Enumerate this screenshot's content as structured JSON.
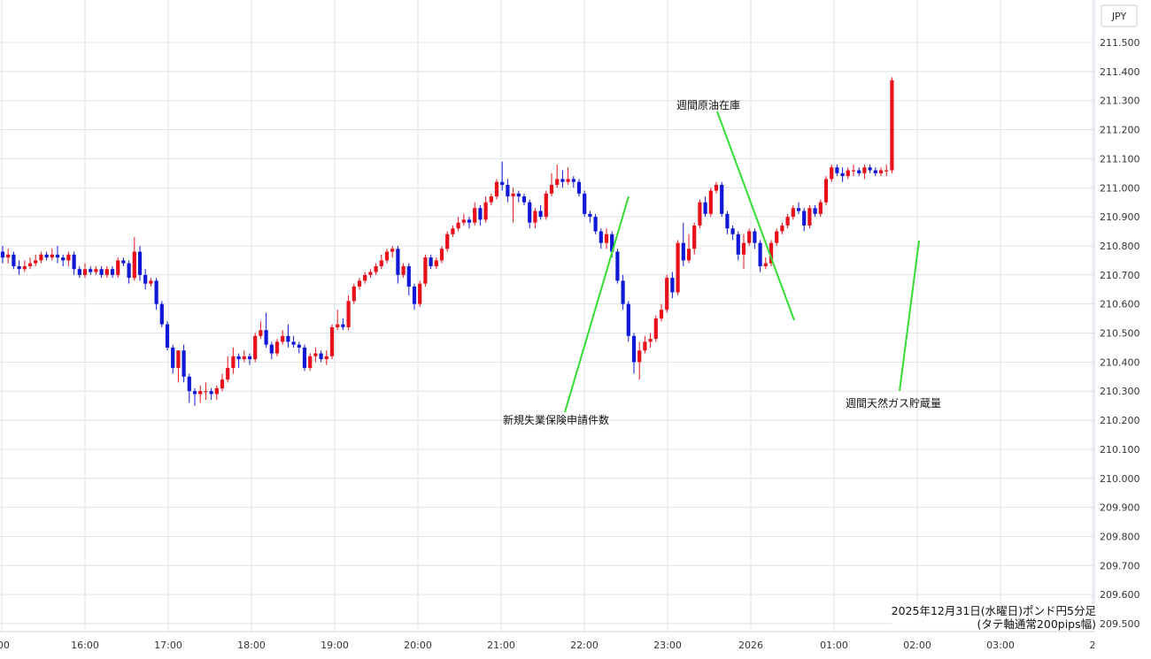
{
  "currency_label": "JPY",
  "caption": {
    "line1": "2025年12月31日(水曜日)ポンド円5分足",
    "line2": "(タテ軸通常200pips幅)"
  },
  "colors": {
    "up": "#e8101a",
    "down": "#1018d8",
    "annotation_line": "#33dd33",
    "grid": "#dde3ea"
  },
  "chart_data": {
    "type": "candlestick",
    "title": "",
    "ylim": [
      209.5,
      211.5
    ],
    "y_ticks": [
      "211.500",
      "211.400",
      "211.300",
      "211.200",
      "211.100",
      "211.000",
      "210.900",
      "210.800",
      "210.700",
      "210.600",
      "210.500",
      "210.400",
      "210.300",
      "210.200",
      "210.100",
      "210.000",
      "209.900",
      "209.800",
      "209.700",
      "209.600",
      "209.500"
    ],
    "x_ticks": [
      ":00",
      "16:00",
      "17:00",
      "18:00",
      "19:00",
      "20:00",
      "21:00",
      "22:00",
      "23:00",
      "2026",
      "01:00",
      "02:00",
      "03:00",
      "2"
    ],
    "annotations": [
      {
        "text": "新規失業保険申請件数"
      },
      {
        "text": "週間原油在庫"
      },
      {
        "text": "週間天然ガス貯蔵量"
      }
    ],
    "candles": [
      [
        210.78,
        210.76,
        210.8,
        210.74
      ],
      [
        210.76,
        210.77,
        210.79,
        210.74
      ],
      [
        210.77,
        210.73,
        210.78,
        210.72
      ],
      [
        210.73,
        210.72,
        210.75,
        210.7
      ],
      [
        210.72,
        210.73,
        210.75,
        210.71
      ],
      [
        210.73,
        210.74,
        210.76,
        210.72
      ],
      [
        210.74,
        210.75,
        210.77,
        210.73
      ],
      [
        210.75,
        210.77,
        210.78,
        210.74
      ],
      [
        210.77,
        210.76,
        210.78,
        210.75
      ],
      [
        210.76,
        210.77,
        210.79,
        210.75
      ],
      [
        210.77,
        210.76,
        210.8,
        210.74
      ],
      [
        210.76,
        210.75,
        210.77,
        210.73
      ],
      [
        210.75,
        210.77,
        210.78,
        210.73
      ],
      [
        210.77,
        210.72,
        210.78,
        210.7
      ],
      [
        210.72,
        210.7,
        210.73,
        210.69
      ],
      [
        210.7,
        210.72,
        210.74,
        210.69
      ],
      [
        210.72,
        210.71,
        210.73,
        210.7
      ],
      [
        210.71,
        210.72,
        210.73,
        210.7
      ],
      [
        210.72,
        210.7,
        210.73,
        210.69
      ],
      [
        210.7,
        210.72,
        210.73,
        210.69
      ],
      [
        210.72,
        210.7,
        210.73,
        210.69
      ],
      [
        210.7,
        210.75,
        210.76,
        210.69
      ],
      [
        210.75,
        210.74,
        210.76,
        210.73
      ],
      [
        210.74,
        210.69,
        210.75,
        210.67
      ],
      [
        210.69,
        210.78,
        210.83,
        210.68
      ],
      [
        210.78,
        210.7,
        210.8,
        210.68
      ],
      [
        210.7,
        210.67,
        210.72,
        210.65
      ],
      [
        210.67,
        210.68,
        210.69,
        210.66
      ],
      [
        210.68,
        210.6,
        210.69,
        210.58
      ],
      [
        210.6,
        210.53,
        210.61,
        210.52
      ],
      [
        210.53,
        210.45,
        210.54,
        210.44
      ],
      [
        210.45,
        210.38,
        210.46,
        210.36
      ],
      [
        210.38,
        210.44,
        210.44,
        210.33
      ],
      [
        210.44,
        210.35,
        210.46,
        210.33
      ],
      [
        210.35,
        210.3,
        210.36,
        210.26
      ],
      [
        210.3,
        210.29,
        210.31,
        210.25
      ],
      [
        210.29,
        210.3,
        210.32,
        210.26
      ],
      [
        210.3,
        210.3,
        210.33,
        210.27
      ],
      [
        210.3,
        210.29,
        210.31,
        210.27
      ],
      [
        210.29,
        210.31,
        210.32,
        210.27
      ],
      [
        210.31,
        210.34,
        210.36,
        210.3
      ],
      [
        210.34,
        210.38,
        210.42,
        210.33
      ],
      [
        210.38,
        210.42,
        210.45,
        210.36
      ],
      [
        210.42,
        210.41,
        210.43,
        210.38
      ],
      [
        210.41,
        210.42,
        210.44,
        210.4
      ],
      [
        210.42,
        210.41,
        210.43,
        210.39
      ],
      [
        210.41,
        210.49,
        210.5,
        210.4
      ],
      [
        210.49,
        210.51,
        210.54,
        210.48
      ],
      [
        210.51,
        210.46,
        210.57,
        210.45
      ],
      [
        210.46,
        210.43,
        210.47,
        210.41
      ],
      [
        210.43,
        210.47,
        210.48,
        210.42
      ],
      [
        210.47,
        210.49,
        210.51,
        210.46
      ],
      [
        210.49,
        210.47,
        210.53,
        210.45
      ],
      [
        210.47,
        210.46,
        210.49,
        210.45
      ],
      [
        210.46,
        210.45,
        210.47,
        210.43
      ],
      [
        210.45,
        210.38,
        210.46,
        210.37
      ],
      [
        210.38,
        210.42,
        210.43,
        210.37
      ],
      [
        210.42,
        210.43,
        210.45,
        210.4
      ],
      [
        210.43,
        210.41,
        210.44,
        210.4
      ],
      [
        210.41,
        210.42,
        210.44,
        210.39
      ],
      [
        210.42,
        210.52,
        210.53,
        210.41
      ],
      [
        210.52,
        210.53,
        210.58,
        210.51
      ],
      [
        210.53,
        210.52,
        210.55,
        210.51
      ],
      [
        210.52,
        210.61,
        210.63,
        210.51
      ],
      [
        210.61,
        210.66,
        210.67,
        210.6
      ],
      [
        210.66,
        210.68,
        210.69,
        210.65
      ],
      [
        210.68,
        210.7,
        210.71,
        210.67
      ],
      [
        210.7,
        210.71,
        210.72,
        210.69
      ],
      [
        210.71,
        210.73,
        210.74,
        210.7
      ],
      [
        210.73,
        210.75,
        210.77,
        210.72
      ],
      [
        210.75,
        210.78,
        210.79,
        210.74
      ],
      [
        210.78,
        210.79,
        210.8,
        210.76
      ],
      [
        210.79,
        210.7,
        210.8,
        210.67
      ],
      [
        210.7,
        210.73,
        210.74,
        210.69
      ],
      [
        210.73,
        210.66,
        210.74,
        210.63
      ],
      [
        210.66,
        210.6,
        210.67,
        210.58
      ],
      [
        210.6,
        210.67,
        210.68,
        210.59
      ],
      [
        210.67,
        210.76,
        210.77,
        210.66
      ],
      [
        210.76,
        210.73,
        210.77,
        210.72
      ],
      [
        210.73,
        210.75,
        210.76,
        210.72
      ],
      [
        210.75,
        210.79,
        210.8,
        210.74
      ],
      [
        210.79,
        210.84,
        210.85,
        210.78
      ],
      [
        210.84,
        210.86,
        210.87,
        210.83
      ],
      [
        210.86,
        210.88,
        210.9,
        210.85
      ],
      [
        210.88,
        210.89,
        210.91,
        210.87
      ],
      [
        210.89,
        210.88,
        210.9,
        210.86
      ],
      [
        210.88,
        210.93,
        210.95,
        210.87
      ],
      [
        210.93,
        210.89,
        210.94,
        210.87
      ],
      [
        210.89,
        210.95,
        210.97,
        210.88
      ],
      [
        210.95,
        210.97,
        210.98,
        210.94
      ],
      [
        210.97,
        211.02,
        211.03,
        210.96
      ],
      [
        211.02,
        211.01,
        211.09,
        210.99
      ],
      [
        211.01,
        210.97,
        211.03,
        210.95
      ],
      [
        210.97,
        210.98,
        211.0,
        210.88
      ],
      [
        210.98,
        210.97,
        210.99,
        210.95
      ],
      [
        210.97,
        210.95,
        210.98,
        210.94
      ],
      [
        210.95,
        210.88,
        210.96,
        210.86
      ],
      [
        210.88,
        210.92,
        210.93,
        210.86
      ],
      [
        210.92,
        210.9,
        210.94,
        210.89
      ],
      [
        210.9,
        210.98,
        210.99,
        210.89
      ],
      [
        210.98,
        211.01,
        211.05,
        210.97
      ],
      [
        211.01,
        211.03,
        211.08,
        211.0
      ],
      [
        211.03,
        211.02,
        211.06,
        211.0
      ],
      [
        211.02,
        211.03,
        211.07,
        211.01
      ],
      [
        211.03,
        211.02,
        211.04,
        211.0
      ],
      [
        211.02,
        210.98,
        211.03,
        210.97
      ],
      [
        210.98,
        210.91,
        210.99,
        210.9
      ],
      [
        210.91,
        210.9,
        210.92,
        210.88
      ],
      [
        210.9,
        210.85,
        210.91,
        210.84
      ],
      [
        210.85,
        210.81,
        210.86,
        210.79
      ],
      [
        210.81,
        210.84,
        210.86,
        210.79
      ],
      [
        210.84,
        210.78,
        210.85,
        210.76
      ],
      [
        210.78,
        210.68,
        210.79,
        210.67
      ],
      [
        210.68,
        210.6,
        210.7,
        210.58
      ],
      [
        210.6,
        210.49,
        210.61,
        210.47
      ],
      [
        210.49,
        210.4,
        210.5,
        210.36
      ],
      [
        210.4,
        210.44,
        210.47,
        210.34
      ],
      [
        210.44,
        210.47,
        210.49,
        210.43
      ],
      [
        210.47,
        210.48,
        210.5,
        210.45
      ],
      [
        210.48,
        210.55,
        210.56,
        210.47
      ],
      [
        210.55,
        210.58,
        210.6,
        210.54
      ],
      [
        210.58,
        210.69,
        210.7,
        210.57
      ],
      [
        210.69,
        210.64,
        210.71,
        210.62
      ],
      [
        210.64,
        210.81,
        210.82,
        210.63
      ],
      [
        210.81,
        210.75,
        210.88,
        210.73
      ],
      [
        210.75,
        210.79,
        210.84,
        210.74
      ],
      [
        210.79,
        210.87,
        210.88,
        210.77
      ],
      [
        210.87,
        210.95,
        210.96,
        210.86
      ],
      [
        210.95,
        210.91,
        210.97,
        210.9
      ],
      [
        210.91,
        210.99,
        211.0,
        210.9
      ],
      [
        210.99,
        211.01,
        211.02,
        210.98
      ],
      [
        211.01,
        210.91,
        211.02,
        210.9
      ],
      [
        210.91,
        210.86,
        210.92,
        210.84
      ],
      [
        210.86,
        210.84,
        210.87,
        210.82
      ],
      [
        210.84,
        210.77,
        210.85,
        210.75
      ],
      [
        210.77,
        210.81,
        210.84,
        210.72
      ],
      [
        210.81,
        210.85,
        210.86,
        210.8
      ],
      [
        210.85,
        210.81,
        210.86,
        210.79
      ],
      [
        210.81,
        210.73,
        210.82,
        210.71
      ],
      [
        210.73,
        210.74,
        210.76,
        210.72
      ],
      [
        210.74,
        210.81,
        210.82,
        210.73
      ],
      [
        210.81,
        210.85,
        210.86,
        210.8
      ],
      [
        210.85,
        210.87,
        210.88,
        210.84
      ],
      [
        210.87,
        210.9,
        210.91,
        210.86
      ],
      [
        210.9,
        210.93,
        210.94,
        210.89
      ],
      [
        210.93,
        210.92,
        210.95,
        210.91
      ],
      [
        210.92,
        210.87,
        210.93,
        210.85
      ],
      [
        210.87,
        210.93,
        210.94,
        210.86
      ],
      [
        210.93,
        210.91,
        210.94,
        210.9
      ],
      [
        210.91,
        210.95,
        210.96,
        210.9
      ],
      [
        210.95,
        211.03,
        211.04,
        210.94
      ],
      [
        211.03,
        211.07,
        211.08,
        211.02
      ],
      [
        211.07,
        211.05,
        211.08,
        211.04
      ],
      [
        211.05,
        211.04,
        211.07,
        211.02
      ],
      [
        211.04,
        211.06,
        211.07,
        211.03
      ],
      [
        211.06,
        211.06,
        211.08,
        211.04
      ],
      [
        211.06,
        211.05,
        211.07,
        211.04
      ],
      [
        211.05,
        211.07,
        211.08,
        211.03
      ],
      [
        211.07,
        211.06,
        211.08,
        211.05
      ],
      [
        211.06,
        211.05,
        211.07,
        211.04
      ],
      [
        211.05,
        211.06,
        211.07,
        211.04
      ],
      [
        211.06,
        211.06,
        211.08,
        211.04
      ],
      [
        211.06,
        211.37,
        211.38,
        211.05
      ]
    ]
  }
}
